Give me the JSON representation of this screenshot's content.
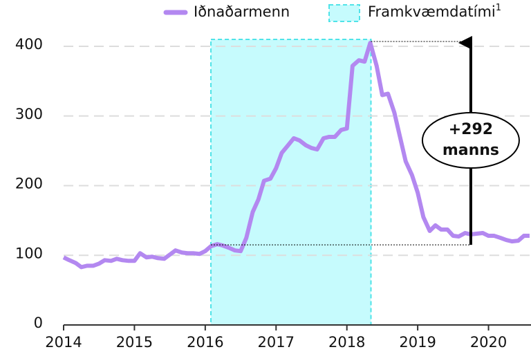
{
  "chart_data": {
    "type": "line",
    "x": [
      2014,
      2014.08,
      2014.17,
      2014.25,
      2014.33,
      2014.42,
      2014.5,
      2014.58,
      2014.67,
      2014.75,
      2014.83,
      2014.92,
      2015,
      2015.08,
      2015.17,
      2015.25,
      2015.33,
      2015.42,
      2015.5,
      2015.58,
      2015.67,
      2015.75,
      2015.83,
      2015.92,
      2016,
      2016.08,
      2016.17,
      2016.25,
      2016.33,
      2016.42,
      2016.5,
      2016.58,
      2016.67,
      2016.75,
      2016.83,
      2016.92,
      2017,
      2017.08,
      2017.17,
      2017.25,
      2017.33,
      2017.42,
      2017.5,
      2017.58,
      2017.67,
      2017.75,
      2017.83,
      2017.92,
      2018,
      2018.08,
      2018.17,
      2018.25,
      2018.33,
      2018.42,
      2018.5,
      2018.58,
      2018.67,
      2018.75,
      2018.83,
      2018.92,
      2019,
      2019.08,
      2019.17,
      2019.25,
      2019.33,
      2019.42,
      2019.5,
      2019.58,
      2019.67,
      2019.75,
      2019.83,
      2019.92,
      2020,
      2020.08,
      2020.17,
      2020.25,
      2020.33,
      2020.42,
      2020.5,
      2020.58
    ],
    "series": [
      {
        "name": "Iðnaðarmenn",
        "color": "#b388f0",
        "values": [
          97,
          93,
          89,
          83,
          85,
          85,
          88,
          93,
          92,
          95,
          93,
          92,
          92,
          103,
          97,
          98,
          96,
          95,
          101,
          107,
          104,
          103,
          103,
          102,
          106,
          113,
          116,
          114,
          111,
          107,
          106,
          125,
          162,
          180,
          207,
          210,
          225,
          247,
          258,
          268,
          265,
          258,
          254,
          252,
          268,
          270,
          270,
          280,
          282,
          372,
          380,
          378,
          405,
          372,
          330,
          332,
          305,
          270,
          235,
          215,
          190,
          155,
          135,
          143,
          137,
          137,
          128,
          127,
          132,
          130,
          131,
          132,
          128,
          128,
          125,
          122,
          120,
          121,
          128,
          128
        ]
      }
    ],
    "span": {
      "name": "Framkvæmdatími",
      "footnote": "1",
      "x": [
        2016.08,
        2018.34
      ],
      "color": "#c6fbfd",
      "edge": "#4fe3e8"
    },
    "annotation": {
      "text": [
        "+292",
        "manns"
      ],
      "x": 2019.75,
      "y": [
        115,
        407
      ]
    },
    "xlim": [
      2014,
      2020.6
    ],
    "xticks": [
      2014,
      2015,
      2016,
      2017,
      2018,
      2019,
      2020
    ],
    "ylim": [
      0,
      400
    ],
    "yticks": [
      0,
      100,
      200,
      300,
      400
    ],
    "grid": true
  }
}
